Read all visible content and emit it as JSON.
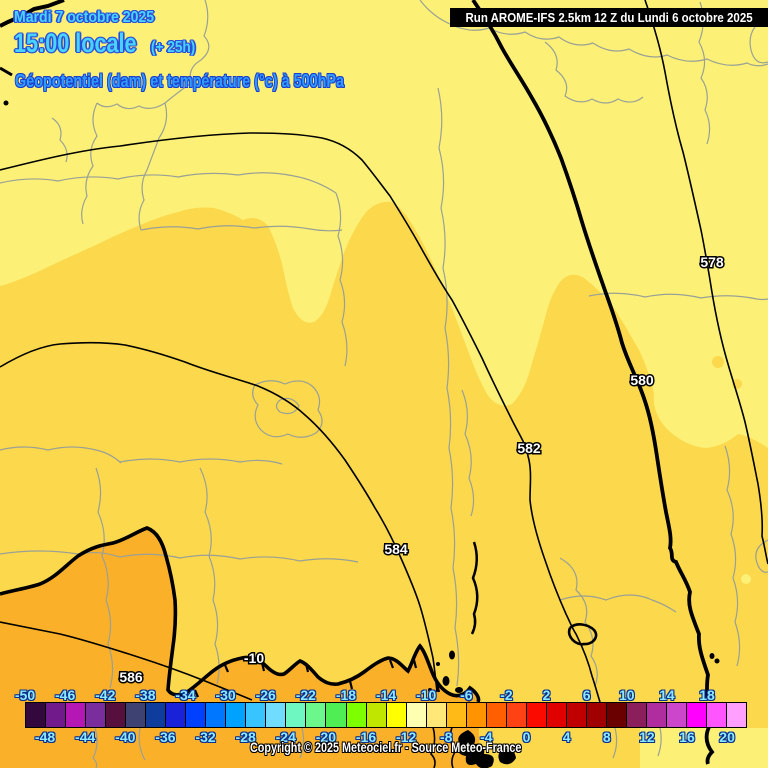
{
  "header": {
    "date_line": "Mardi 7 octobre 2025",
    "time_line": "15:00 locale",
    "time_offset": "(+ 25h)",
    "param_line": "Géopotentiel (dam) et température (°c) à 500hPa",
    "run_info": "Run AROME-IFS 2.5km 12 Z du Lundi 6 octobre 2025"
  },
  "map": {
    "region_colors": {
      "pale": "#fcf176",
      "gold": "#fbd84c",
      "orange": "#fbb02a",
      "border": "#9aa096",
      "contour": "#000000"
    },
    "contour_labels": [
      {
        "text": "578"
      },
      {
        "text": "580"
      },
      {
        "text": "582"
      },
      {
        "text": "584"
      },
      {
        "text": "586"
      }
    ],
    "isotherm_label": {
      "text": "-10"
    }
  },
  "scale": {
    "unit": "°c",
    "labels": [
      -50,
      -48,
      -46,
      -44,
      -42,
      -40,
      -38,
      -36,
      -34,
      -32,
      -30,
      -28,
      -26,
      -24,
      -22,
      -20,
      -18,
      -16,
      -14,
      -12,
      -10,
      -8,
      -6,
      -4,
      -2,
      0,
      2,
      4,
      6,
      8,
      10,
      12,
      14,
      16,
      18,
      20
    ],
    "colors": [
      "#33083d",
      "#701a8c",
      "#b517b5",
      "#7a2e9e",
      "#570f3d",
      "#3d4272",
      "#0f3d9e",
      "#1a22d9",
      "#0040ff",
      "#0077ff",
      "#00a2ff",
      "#38c4ff",
      "#70dcff",
      "#6ef7c0",
      "#6cf78c",
      "#50ee55",
      "#7dff00",
      "#c0e600",
      "#ffff00",
      "#ffffb2",
      "#ffe878",
      "#ffba18",
      "#ff9400",
      "#ff5f00",
      "#ff4214",
      "#fb0a00",
      "#e00000",
      "#c00000",
      "#a00000",
      "#6b0000",
      "#8a1f5c",
      "#b02da0",
      "#cc46cc",
      "#ff00ff",
      "#ff55ff",
      "#ffa0ff"
    ]
  },
  "footer": {
    "copyright": "Copyright © 2025 Meteociel.fr - Source Meteo-France"
  }
}
